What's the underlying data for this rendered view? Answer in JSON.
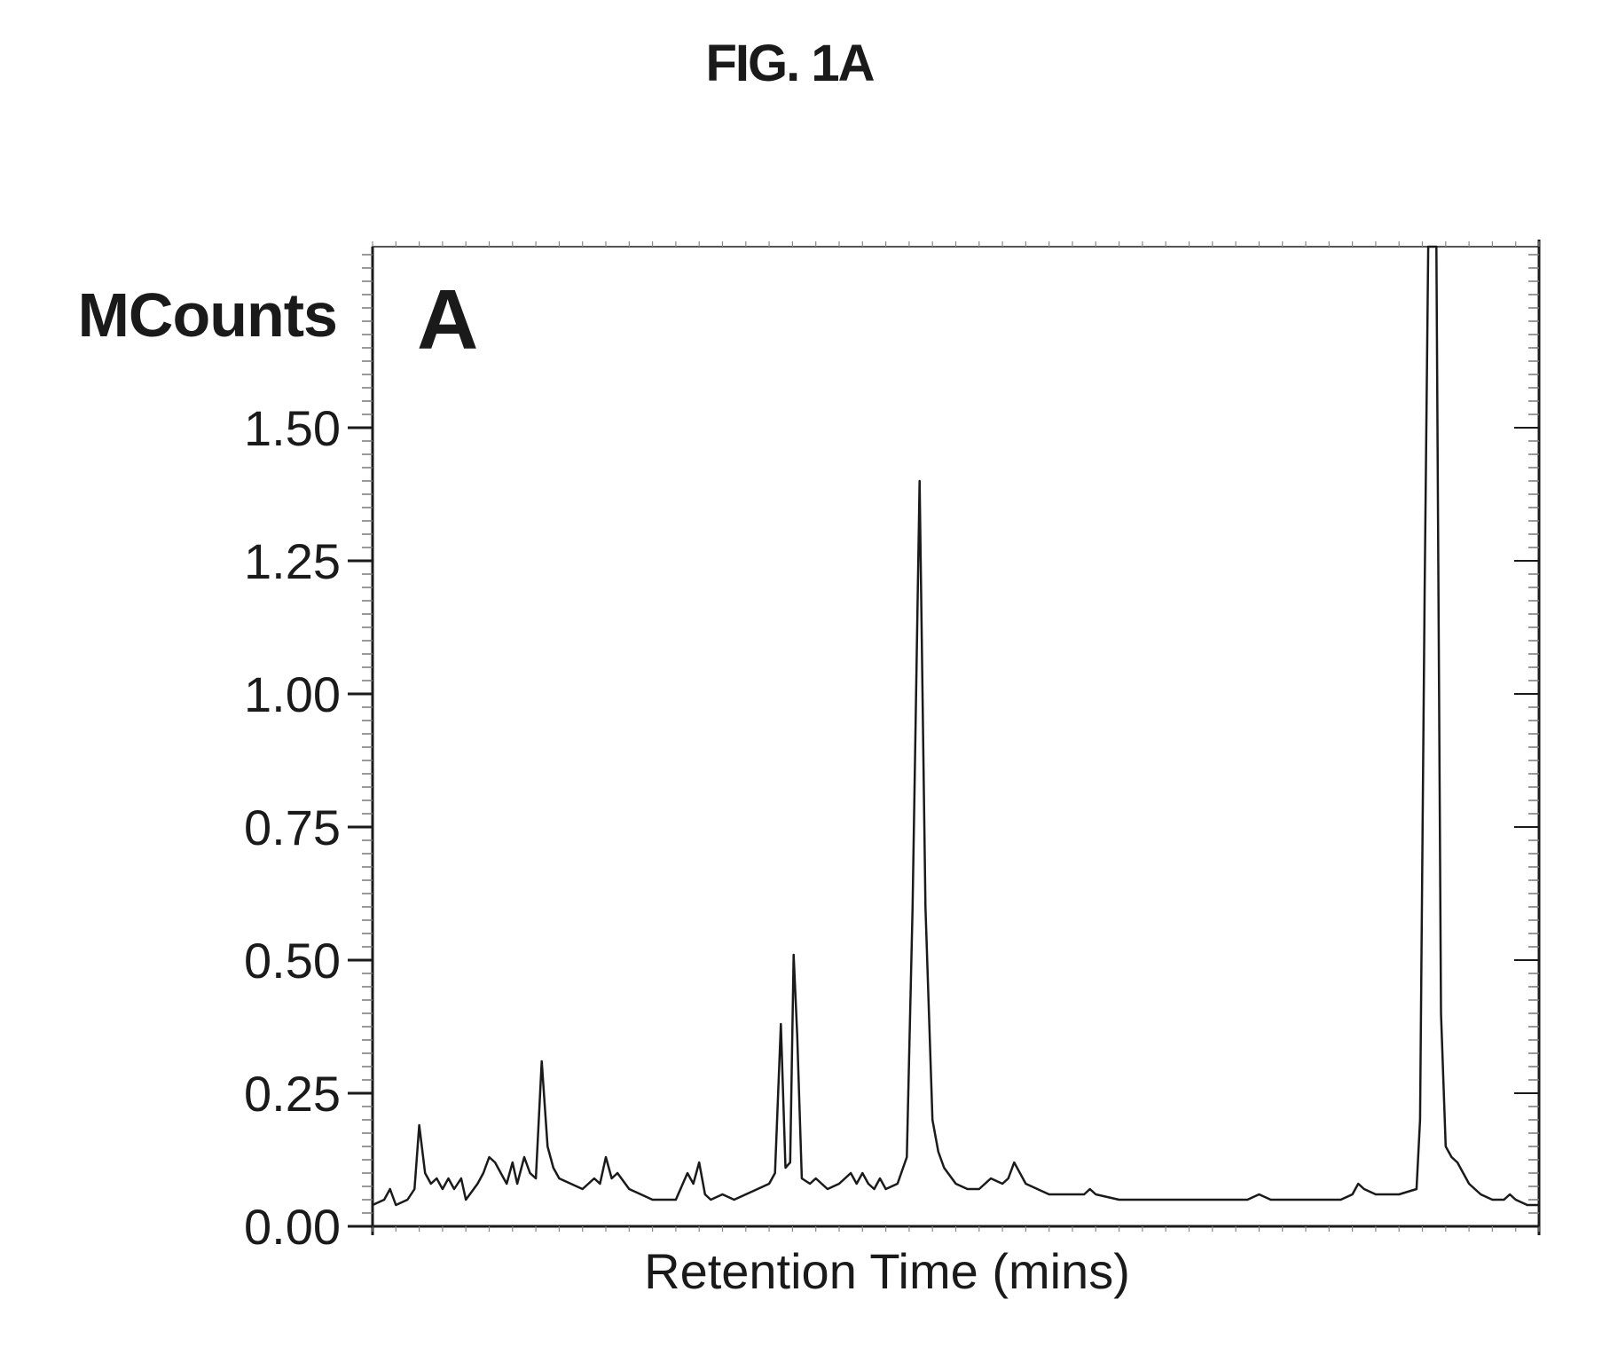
{
  "figure_title": "FIG. 1A",
  "chart_data": {
    "type": "line",
    "panel_label": "A",
    "ylabel": "MCounts",
    "xlabel": "Retention Time (mins)",
    "xlim": [
      0,
      100
    ],
    "ylim": [
      0,
      1.84
    ],
    "yticks": [
      {
        "value": 0.0,
        "label": "0.00"
      },
      {
        "value": 0.25,
        "label": "0.25"
      },
      {
        "value": 0.5,
        "label": "0.50"
      },
      {
        "value": 0.75,
        "label": "0.75"
      },
      {
        "value": 1.0,
        "label": "1.00"
      },
      {
        "value": 1.25,
        "label": "1.25"
      },
      {
        "value": 1.5,
        "label": "1.50"
      }
    ],
    "x_tick_labels_shown": false,
    "grid": false,
    "line_color": "#1a1a1a",
    "series": [
      {
        "points": [
          [
            0,
            0.04
          ],
          [
            1,
            0.05
          ],
          [
            1.5,
            0.07
          ],
          [
            2,
            0.04
          ],
          [
            3,
            0.05
          ],
          [
            3.6,
            0.07
          ],
          [
            4,
            0.19
          ],
          [
            4.5,
            0.1
          ],
          [
            5,
            0.08
          ],
          [
            5.5,
            0.09
          ],
          [
            6,
            0.07
          ],
          [
            6.5,
            0.09
          ],
          [
            7,
            0.07
          ],
          [
            7.6,
            0.09
          ],
          [
            8,
            0.05
          ],
          [
            9,
            0.08
          ],
          [
            9.5,
            0.1
          ],
          [
            10,
            0.13
          ],
          [
            10.5,
            0.12
          ],
          [
            11,
            0.1
          ],
          [
            11.5,
            0.08
          ],
          [
            12,
            0.12
          ],
          [
            12.4,
            0.08
          ],
          [
            13,
            0.13
          ],
          [
            13.5,
            0.1
          ],
          [
            14,
            0.09
          ],
          [
            14.5,
            0.31
          ],
          [
            15,
            0.15
          ],
          [
            15.5,
            0.11
          ],
          [
            16,
            0.09
          ],
          [
            17,
            0.08
          ],
          [
            18,
            0.07
          ],
          [
            19,
            0.09
          ],
          [
            19.5,
            0.08
          ],
          [
            20,
            0.13
          ],
          [
            20.5,
            0.09
          ],
          [
            21,
            0.1
          ],
          [
            22,
            0.07
          ],
          [
            23,
            0.06
          ],
          [
            24,
            0.05
          ],
          [
            25,
            0.05
          ],
          [
            26,
            0.05
          ],
          [
            27,
            0.1
          ],
          [
            27.5,
            0.08
          ],
          [
            28,
            0.12
          ],
          [
            28.5,
            0.06
          ],
          [
            29,
            0.05
          ],
          [
            30,
            0.06
          ],
          [
            31,
            0.05
          ],
          [
            32,
            0.06
          ],
          [
            33,
            0.07
          ],
          [
            34,
            0.08
          ],
          [
            34.5,
            0.1
          ],
          [
            35,
            0.38
          ],
          [
            35.4,
            0.11
          ],
          [
            35.8,
            0.12
          ],
          [
            36.1,
            0.51
          ],
          [
            36.4,
            0.36
          ],
          [
            36.8,
            0.09
          ],
          [
            37.5,
            0.08
          ],
          [
            38,
            0.09
          ],
          [
            39,
            0.07
          ],
          [
            40,
            0.08
          ],
          [
            41,
            0.1
          ],
          [
            41.5,
            0.08
          ],
          [
            42,
            0.1
          ],
          [
            42.5,
            0.08
          ],
          [
            43,
            0.07
          ],
          [
            43.5,
            0.09
          ],
          [
            44,
            0.07
          ],
          [
            45,
            0.08
          ],
          [
            45.8,
            0.13
          ],
          [
            46.3,
            0.6
          ],
          [
            46.9,
            1.4
          ],
          [
            47.4,
            0.6
          ],
          [
            48,
            0.2
          ],
          [
            48.5,
            0.14
          ],
          [
            49,
            0.11
          ],
          [
            50,
            0.08
          ],
          [
            51,
            0.07
          ],
          [
            52,
            0.07
          ],
          [
            53,
            0.09
          ],
          [
            54,
            0.08
          ],
          [
            54.5,
            0.09
          ],
          [
            55,
            0.12
          ],
          [
            56,
            0.08
          ],
          [
            57,
            0.07
          ],
          [
            58,
            0.06
          ],
          [
            59,
            0.06
          ],
          [
            60,
            0.06
          ],
          [
            61,
            0.06
          ],
          [
            61.5,
            0.07
          ],
          [
            62,
            0.06
          ],
          [
            64,
            0.05
          ],
          [
            66,
            0.05
          ],
          [
            68,
            0.05
          ],
          [
            70,
            0.05
          ],
          [
            72,
            0.05
          ],
          [
            74,
            0.05
          ],
          [
            75,
            0.05
          ],
          [
            76,
            0.06
          ],
          [
            77,
            0.05
          ],
          [
            79,
            0.05
          ],
          [
            81,
            0.05
          ],
          [
            83,
            0.05
          ],
          [
            84,
            0.06
          ],
          [
            84.5,
            0.08
          ],
          [
            85,
            0.07
          ],
          [
            86,
            0.06
          ],
          [
            88,
            0.06
          ],
          [
            89.5,
            0.07
          ],
          [
            89.8,
            0.2
          ],
          [
            90.2,
            1.2
          ],
          [
            90.5,
            1.84
          ],
          [
            91.2,
            1.84
          ],
          [
            91.6,
            0.4
          ],
          [
            92,
            0.15
          ],
          [
            92.5,
            0.13
          ],
          [
            93,
            0.12
          ],
          [
            94,
            0.08
          ],
          [
            95,
            0.06
          ],
          [
            96,
            0.05
          ],
          [
            97,
            0.05
          ],
          [
            97.5,
            0.06
          ],
          [
            98,
            0.05
          ],
          [
            99,
            0.04
          ],
          [
            100,
            0.04
          ]
        ]
      }
    ]
  }
}
